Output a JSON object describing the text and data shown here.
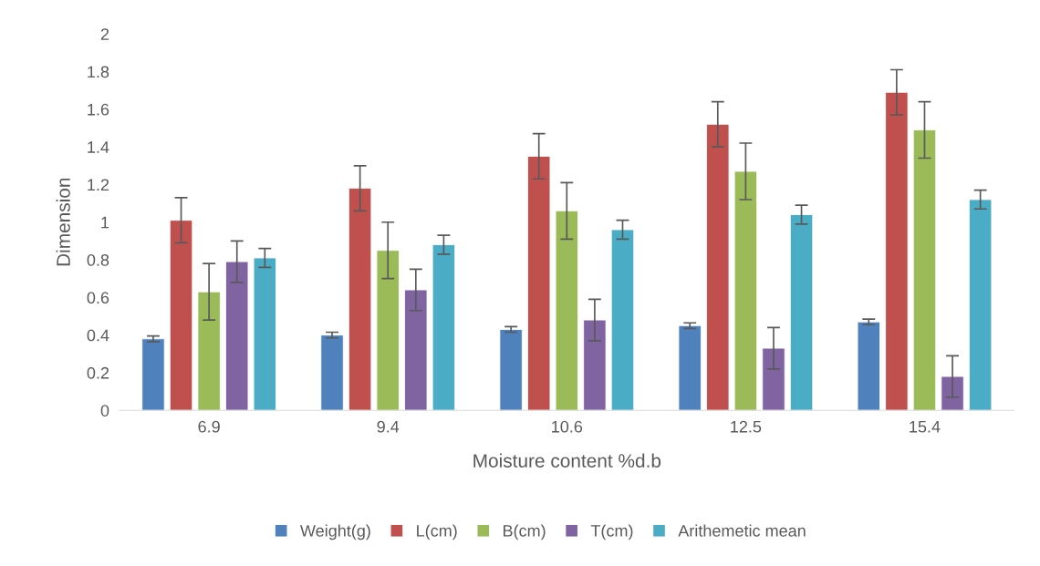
{
  "chart_data": {
    "type": "bar",
    "xlabel": "Moisture content %d.b",
    "ylabel": "Dimension",
    "categories": [
      "6.9",
      "9.4",
      "10.6",
      "12.5",
      "15.4"
    ],
    "series": [
      {
        "name": "Weight(g)",
        "color": "#4f81bd",
        "values": [
          0.38,
          0.4,
          0.43,
          0.45,
          0.47
        ],
        "errors": [
          0.015,
          0.015,
          0.015,
          0.015,
          0.015
        ]
      },
      {
        "name": "L(cm)",
        "color": "#c0504d",
        "values": [
          1.01,
          1.18,
          1.35,
          1.52,
          1.69
        ],
        "errors": [
          0.12,
          0.12,
          0.12,
          0.12,
          0.12
        ]
      },
      {
        "name": "B(cm)",
        "color": "#9bbb59",
        "values": [
          0.63,
          0.85,
          1.06,
          1.27,
          1.49
        ],
        "errors": [
          0.15,
          0.15,
          0.15,
          0.15,
          0.15
        ]
      },
      {
        "name": "T(cm)",
        "color": "#8064a2",
        "values": [
          0.79,
          0.64,
          0.48,
          0.33,
          0.18
        ],
        "errors": [
          0.11,
          0.11,
          0.11,
          0.11,
          0.11
        ]
      },
      {
        "name": "Arithemetic mean",
        "color": "#4bacc6",
        "values": [
          0.81,
          0.88,
          0.96,
          1.04,
          1.12
        ],
        "errors": [
          0.05,
          0.05,
          0.05,
          0.05,
          0.05
        ]
      }
    ],
    "ylim": [
      0,
      2
    ],
    "yticks": [
      0,
      0.2,
      0.4,
      0.6,
      0.8,
      1,
      1.2,
      1.4,
      1.6,
      1.8,
      2
    ],
    "grid": false,
    "legend": "bottom"
  }
}
